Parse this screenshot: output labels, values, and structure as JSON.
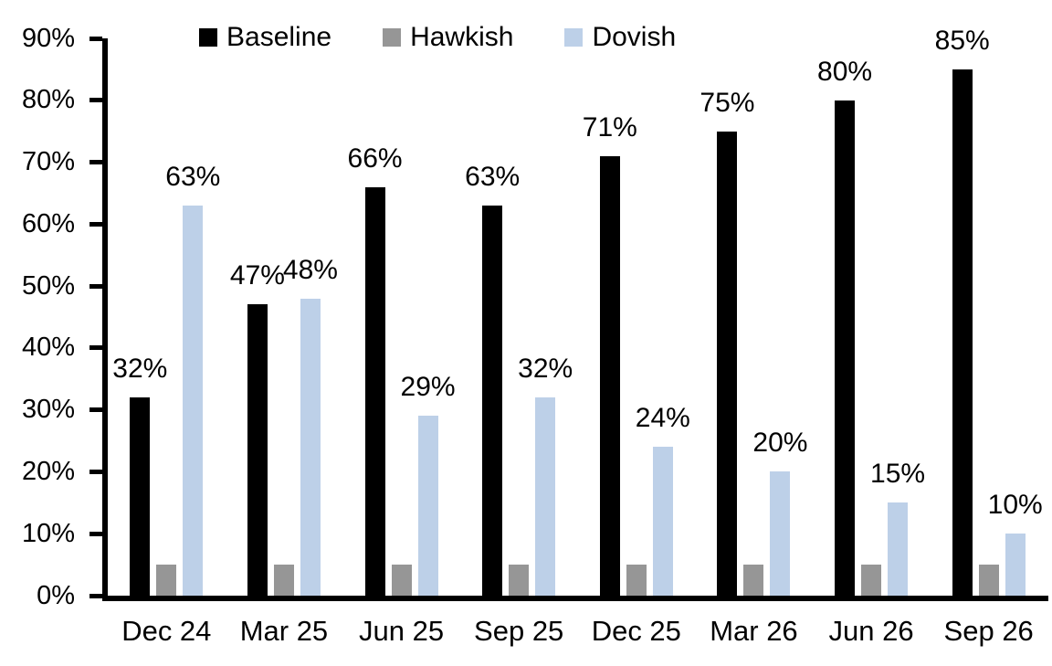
{
  "chart_data": {
    "type": "bar",
    "title": "",
    "categories": [
      "Dec 24",
      "Mar 25",
      "Jun 25",
      "Sep 25",
      "Dec 25",
      "Mar 26",
      "Jun 26",
      "Sep 26"
    ],
    "series": [
      {
        "name": "Baseline",
        "color": "#000000",
        "values": [
          32,
          47,
          66,
          63,
          71,
          75,
          80,
          85
        ],
        "labels": [
          "32%",
          "47%",
          "66%",
          "63%",
          "71%",
          "75%",
          "80%",
          "85%"
        ],
        "show_labels": true
      },
      {
        "name": "Hawkish",
        "color": "#969696",
        "values": [
          5,
          5,
          5,
          5,
          5,
          5,
          5,
          5
        ],
        "labels": [],
        "show_labels": false
      },
      {
        "name": "Dovish",
        "color": "#BDD0E8",
        "values": [
          63,
          48,
          29,
          32,
          24,
          20,
          15,
          10
        ],
        "labels": [
          "63%",
          "48%",
          "29%",
          "32%",
          "24%",
          "20%",
          "15%",
          "10%"
        ],
        "show_labels": true
      }
    ],
    "ylim": [
      0,
      90
    ],
    "y_ticks": [
      {
        "label": "90%",
        "value": 90
      },
      {
        "label": "80%",
        "value": 80
      },
      {
        "label": "70%",
        "value": 70
      },
      {
        "label": "60%",
        "value": 60
      },
      {
        "label": "50%",
        "value": 50
      },
      {
        "label": "40%",
        "value": 40
      },
      {
        "label": "30%",
        "value": 30
      },
      {
        "label": "20%",
        "value": 20
      },
      {
        "label": "10%",
        "value": 10
      },
      {
        "label": "0%",
        "value": 0
      }
    ],
    "xlabel": "",
    "ylabel": "",
    "legend_position": "top",
    "grid": false,
    "axis_color": "#000000",
    "background_color": "#FFFFFF"
  }
}
